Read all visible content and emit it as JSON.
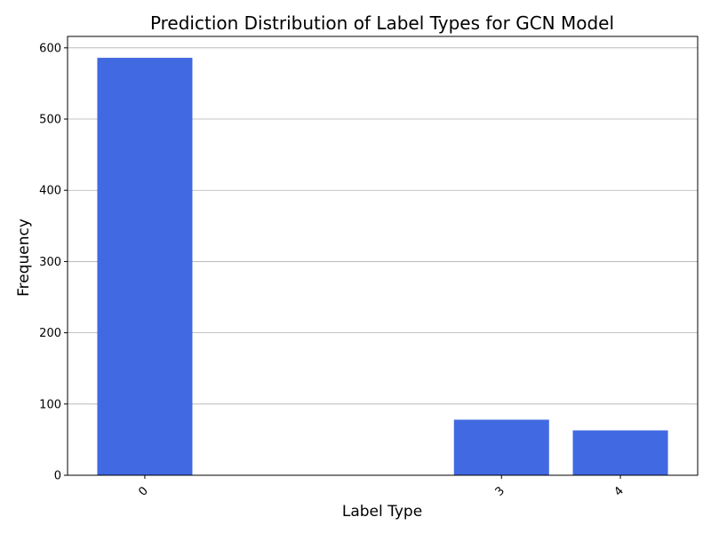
{
  "chart_data": {
    "type": "bar",
    "title": "Prediction Distribution of Label Types for GCN Model",
    "xlabel": "Label Type",
    "ylabel": "Frequency",
    "categories": [
      "0",
      "3",
      "4"
    ],
    "x_positions": [
      0,
      3,
      4
    ],
    "xlim": [
      -0.65,
      4.65
    ],
    "values": [
      586,
      78,
      63
    ],
    "ylim": [
      0,
      616
    ],
    "yticks": [
      0,
      100,
      200,
      300,
      400,
      500,
      600
    ],
    "grid": "horizontal",
    "bar_color": "#4169e1",
    "x_tick_rotation": "45 degrees"
  }
}
